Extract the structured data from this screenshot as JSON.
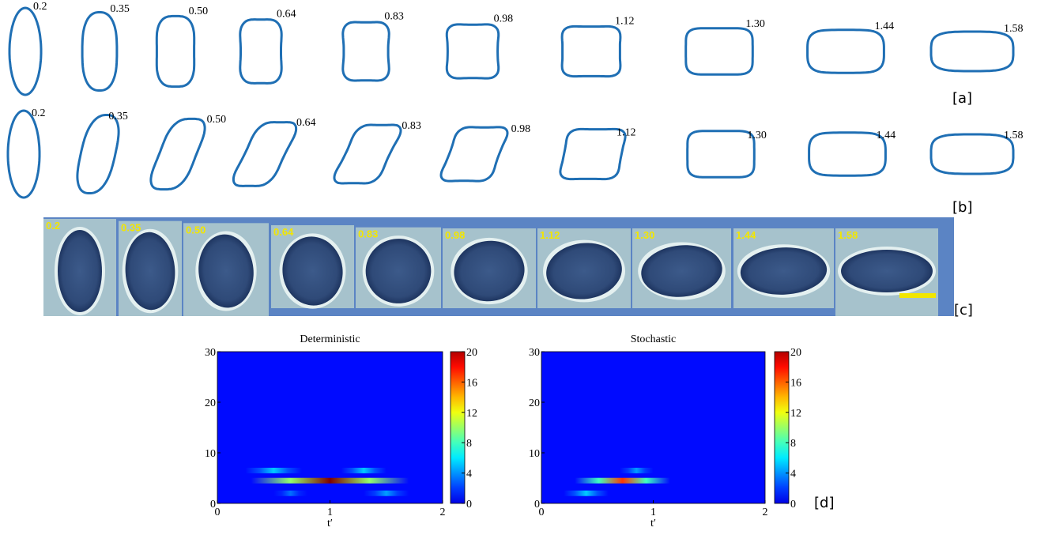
{
  "panel_a": {
    "label": "[a]",
    "times": [
      "0.2",
      "0.35",
      "0.50",
      "0.64",
      "0.83",
      "0.98",
      "1.12",
      "1.30",
      "1.44",
      "1.58"
    ]
  },
  "panel_b": {
    "label": "[b]",
    "times": [
      "0.2",
      "0.35",
      "0.50",
      "0.64",
      "0.83",
      "0.98",
      "1.12",
      "1.30",
      "1.44",
      "1.58"
    ]
  },
  "panel_c": {
    "label": "[c]",
    "times": [
      "0.2",
      "0.35",
      "0.50",
      "0.64",
      "0.83",
      "0.98",
      "1.12",
      "1.30",
      "1.44",
      "1.58"
    ]
  },
  "panel_d": {
    "label": "[d]"
  },
  "chart_data": [
    {
      "type": "heatmap",
      "title": "Deterministic",
      "xlabel": "t′",
      "xlim": [
        0,
        2
      ],
      "xticks": [
        0,
        1,
        2
      ],
      "ylim": [
        0,
        30
      ],
      "yticks": [
        0,
        10,
        20,
        30
      ],
      "clim": [
        0,
        20
      ],
      "cticks": [
        0,
        4,
        8,
        12,
        16,
        20
      ],
      "colormap": "jet",
      "background": 1,
      "features": [
        {
          "x0": 0.25,
          "x1": 0.75,
          "y": 6.5,
          "peak": 5
        },
        {
          "x0": 1.1,
          "x1": 1.5,
          "y": 6.5,
          "peak": 5
        },
        {
          "x0": 0.3,
          "x1": 1.7,
          "y": 4.5,
          "peak": 20
        },
        {
          "x0": 0.5,
          "x1": 0.8,
          "y": 2,
          "peak": 3
        },
        {
          "x0": 1.3,
          "x1": 1.7,
          "y": 2,
          "peak": 4
        }
      ]
    },
    {
      "type": "heatmap",
      "title": "Stochastic",
      "xlabel": "t′",
      "xlim": [
        0,
        2
      ],
      "xticks": [
        0,
        1,
        2
      ],
      "ylim": [
        0,
        30
      ],
      "yticks": [
        0,
        10,
        20,
        30
      ],
      "clim": [
        0,
        20
      ],
      "cticks": [
        0,
        4,
        8,
        12,
        16,
        20
      ],
      "colormap": "jet",
      "background": 1,
      "features": [
        {
          "x0": 0.3,
          "x1": 1.15,
          "y": 4.5,
          "peak": 16
        },
        {
          "x0": 0.7,
          "x1": 1.0,
          "y": 6.5,
          "peak": 4
        },
        {
          "x0": 0.2,
          "x1": 0.6,
          "y": 2,
          "peak": 5
        }
      ]
    }
  ]
}
